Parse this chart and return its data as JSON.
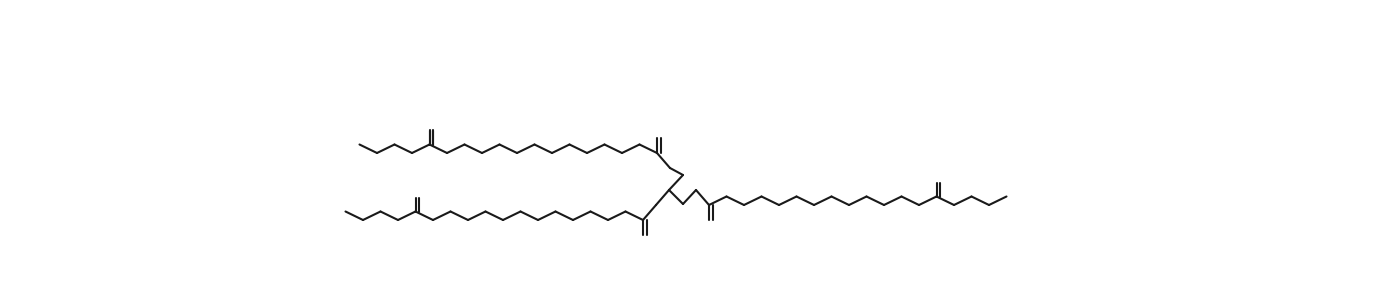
{
  "bg_color": "#ffffff",
  "line_color": "#1a1a1a",
  "line_width": 1.5,
  "figsize": [
    13.93,
    2.92
  ],
  "dpi": 100,
  "bx": 17.5,
  "by": 8.5,
  "dbl_off": 3.5
}
